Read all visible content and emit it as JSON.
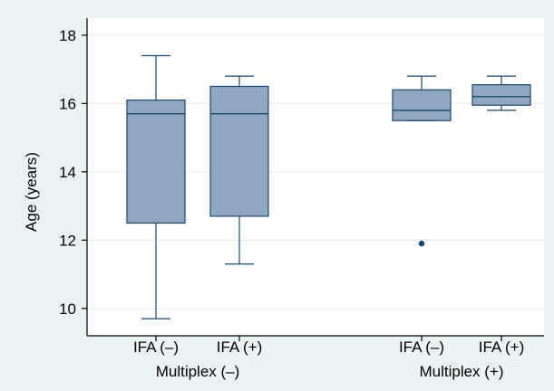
{
  "chart_data": {
    "type": "box",
    "title": "",
    "ylabel": "Age (years)",
    "xlabel": "",
    "ylim": [
      9.2,
      18.5
    ],
    "yticks": [
      10,
      12,
      14,
      16,
      18
    ],
    "ytick_labels": [
      "10",
      "12",
      "14",
      "16",
      "18"
    ],
    "grid": true,
    "groups": [
      {
        "label": "Multiplex (–)",
        "categories": [
          0,
          1
        ]
      },
      {
        "label": "Multiplex (+)",
        "categories": [
          2,
          3
        ]
      }
    ],
    "categories": [
      "IFA (–)",
      "IFA (+)",
      "IFA (–)",
      "IFA (+)"
    ],
    "boxes": [
      {
        "whisker_low": 9.7,
        "q1": 12.5,
        "median": 15.7,
        "q3": 16.1,
        "whisker_high": 17.4,
        "outliers": []
      },
      {
        "whisker_low": 11.3,
        "q1": 12.7,
        "median": 15.7,
        "q3": 16.5,
        "whisker_high": 16.8,
        "outliers": []
      },
      {
        "whisker_low": 15.5,
        "q1": 15.5,
        "median": 15.8,
        "q3": 16.4,
        "whisker_high": 16.8,
        "outliers": [
          11.9
        ]
      },
      {
        "whisker_low": 15.8,
        "q1": 15.95,
        "median": 16.2,
        "q3": 16.55,
        "whisker_high": 16.8,
        "outliers": []
      }
    ],
    "colors": {
      "outer_background": "#EAF2F3",
      "plot_background": "#FFFFFF",
      "grid": "#EAF2F3",
      "box_fill": "#90A8BF",
      "box_stroke": "#1A476F",
      "whisker": "#1A476F",
      "outlier": "#1A476F",
      "axis": "#000000"
    }
  }
}
